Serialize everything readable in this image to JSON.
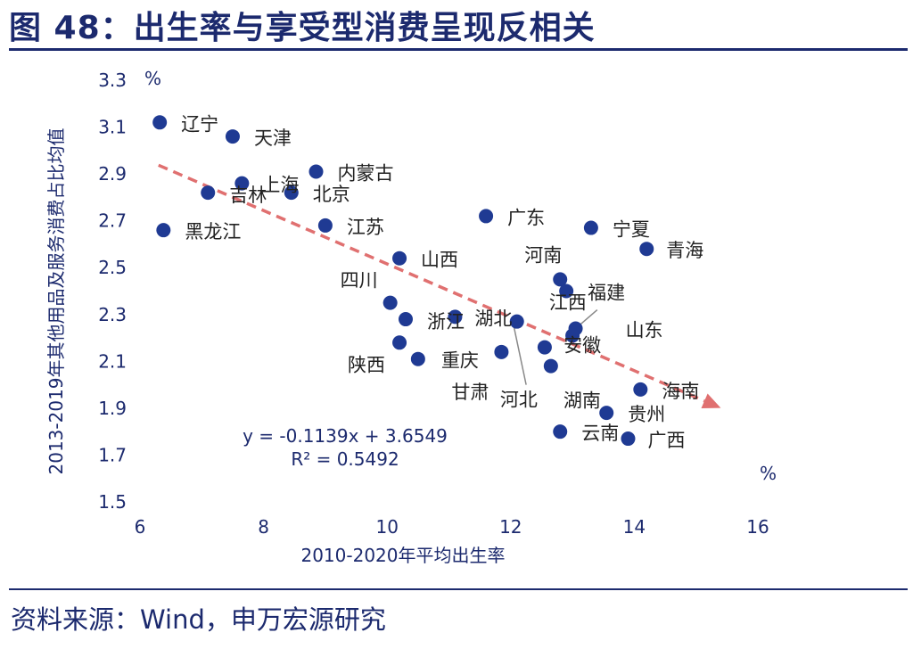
{
  "header": {
    "title": "图 48：出生率与享受型消费呈现反相关"
  },
  "footer": {
    "source": "资料来源：Wind，申万宏源研究"
  },
  "colors": {
    "navy": "#1c2a6e",
    "point": "#1f3a93",
    "trend": "#e07070",
    "text": "#222222"
  },
  "chart_data": {
    "type": "scatter",
    "title": "图 48：出生率与享受型消费呈现反相关",
    "xlabel": "2010-2020年平均出生率",
    "ylabel": "2013-2019年其他用品及服务消费占比均值",
    "x_unit": "%",
    "y_unit": "%",
    "xlim": [
      6,
      16
    ],
    "ylim": [
      1.5,
      3.3
    ],
    "xticks": [
      "6",
      "8",
      "10",
      "12",
      "14",
      "16"
    ],
    "yticks": [
      "1.5",
      "1.7",
      "1.9",
      "2.1",
      "2.3",
      "2.5",
      "2.7",
      "2.9",
      "3.1",
      "3.3"
    ],
    "equation": "y = -0.1139x + 3.6549",
    "r_squared": "R² = 0.5492",
    "trendline": {
      "slope": -0.1139,
      "intercept": 3.6549,
      "x_start": 6.3,
      "x_end": 15.4
    },
    "points": [
      {
        "name": "辽宁",
        "x": 6.32,
        "y": 3.12
      },
      {
        "name": "天津",
        "x": 7.5,
        "y": 3.06
      },
      {
        "name": "内蒙古",
        "x": 8.85,
        "y": 2.91
      },
      {
        "name": "上海",
        "x": 7.65,
        "y": 2.86
      },
      {
        "name": "吉林",
        "x": 7.1,
        "y": 2.82
      },
      {
        "name": "北京",
        "x": 8.45,
        "y": 2.82
      },
      {
        "name": "江苏",
        "x": 9.0,
        "y": 2.68
      },
      {
        "name": "黑龙江",
        "x": 6.38,
        "y": 2.66
      },
      {
        "name": "广东",
        "x": 11.6,
        "y": 2.72
      },
      {
        "name": "宁夏",
        "x": 13.3,
        "y": 2.67
      },
      {
        "name": "青海",
        "x": 14.2,
        "y": 2.58
      },
      {
        "name": "山西",
        "x": 10.2,
        "y": 2.54
      },
      {
        "name": "河南",
        "x": 12.8,
        "y": 2.45
      },
      {
        "name": "福建",
        "x": 12.9,
        "y": 2.4
      },
      {
        "name": "四川",
        "x": 10.05,
        "y": 2.35
      },
      {
        "name": "浙江",
        "x": 10.3,
        "y": 2.28
      },
      {
        "name": "湖北",
        "x": 11.1,
        "y": 2.29
      },
      {
        "name": "江西",
        "x": 12.1,
        "y": 2.27
      },
      {
        "name": "山东",
        "x": 13.05,
        "y": 2.24
      },
      {
        "name": "陕西",
        "x": 10.2,
        "y": 2.18
      },
      {
        "name": "安徽",
        "x": 13.0,
        "y": 2.21
      },
      {
        "name": "重庆",
        "x": 10.5,
        "y": 2.11
      },
      {
        "name": "甘肃",
        "x": 11.85,
        "y": 2.14
      },
      {
        "name": "河北",
        "x": 12.55,
        "y": 2.16
      },
      {
        "name": "湖南",
        "x": 12.65,
        "y": 2.08
      },
      {
        "name": "海南",
        "x": 14.1,
        "y": 1.98
      },
      {
        "name": "贵州",
        "x": 13.55,
        "y": 1.88
      },
      {
        "name": "云南",
        "x": 12.8,
        "y": 1.8
      },
      {
        "name": "广西",
        "x": 13.9,
        "y": 1.77
      }
    ]
  }
}
